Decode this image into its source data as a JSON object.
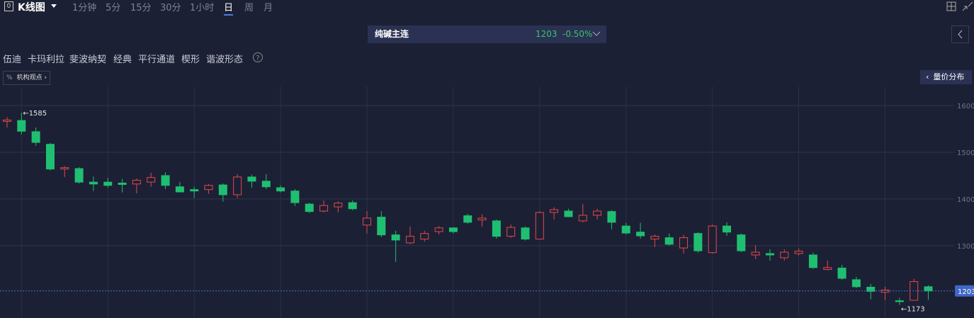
{
  "toolbar": {
    "title": "K线图",
    "periods": [
      "1分钟",
      "5分",
      "15分",
      "30分",
      "1小时",
      "日",
      "周",
      "月"
    ],
    "active_period": 5
  },
  "header": {
    "symbol": "纯碱主连",
    "change": "-0.50%"
  },
  "tools": [
    "伍迪",
    "卡玛利拉",
    "斐波纳契",
    "经典",
    "平行通道",
    "楔形",
    "谐波形态"
  ],
  "buttons": {
    "views": "机构观点",
    "volume_profile": "量价分布"
  },
  "chart_data": {
    "type": "candlestick",
    "open": [
      1566,
      1568,
      1544,
      1517,
      1464,
      1465,
      1436,
      1436,
      1434,
      1432,
      1436,
      1450,
      1426,
      1420,
      1420,
      1430,
      1409,
      1447,
      1438,
      1424,
      1417,
      1389,
      1374,
      1383,
      1392,
      1344,
      1361,
      1323,
      1306,
      1314,
      1330,
      1338,
      1364,
      1355,
      1353,
      1320,
      1338,
      1314,
      1371,
      1374,
      1353,
      1365,
      1373,
      1342,
      1329,
      1314,
      1317,
      1295,
      1326,
      1285,
      1342,
      1323,
      1280,
      1283,
      1274,
      1283,
      1280,
      1249,
      1252,
      1227,
      1211,
      1200,
      1182,
      1183,
      1212
    ],
    "high": [
      1575,
      1585,
      1553,
      1520,
      1470,
      1468,
      1448,
      1445,
      1443,
      1444,
      1456,
      1457,
      1436,
      1426,
      1432,
      1433,
      1453,
      1452,
      1453,
      1429,
      1421,
      1392,
      1397,
      1395,
      1397,
      1374,
      1374,
      1332,
      1341,
      1332,
      1342,
      1339,
      1368,
      1367,
      1356,
      1345,
      1341,
      1374,
      1382,
      1379,
      1389,
      1379,
      1376,
      1349,
      1349,
      1324,
      1326,
      1323,
      1329,
      1345,
      1350,
      1326,
      1301,
      1292,
      1292,
      1294,
      1285,
      1268,
      1259,
      1233,
      1218,
      1212,
      1188,
      1229,
      1215
    ],
    "low": [
      1553,
      1538,
      1514,
      1461,
      1447,
      1433,
      1417,
      1424,
      1414,
      1412,
      1426,
      1421,
      1414,
      1402,
      1411,
      1394,
      1402,
      1424,
      1421,
      1414,
      1385,
      1370,
      1371,
      1371,
      1376,
      1326,
      1318,
      1265,
      1303,
      1309,
      1324,
      1326,
      1347,
      1341,
      1315,
      1317,
      1311,
      1314,
      1356,
      1361,
      1350,
      1356,
      1335,
      1324,
      1315,
      1297,
      1300,
      1283,
      1285,
      1283,
      1321,
      1286,
      1271,
      1268,
      1268,
      1279,
      1250,
      1247,
      1227,
      1209,
      1185,
      1183,
      1173,
      1182,
      1184
    ],
    "close": [
      1569,
      1545,
      1521,
      1464,
      1467,
      1436,
      1432,
      1429,
      1431,
      1440,
      1446,
      1429,
      1415,
      1417,
      1429,
      1409,
      1447,
      1438,
      1426,
      1417,
      1392,
      1373,
      1386,
      1391,
      1379,
      1359,
      1323,
      1312,
      1320,
      1326,
      1338,
      1330,
      1350,
      1359,
      1320,
      1339,
      1314,
      1371,
      1377,
      1362,
      1365,
      1374,
      1350,
      1327,
      1321,
      1320,
      1303,
      1317,
      1289,
      1342,
      1329,
      1289,
      1286,
      1280,
      1286,
      1288,
      1253,
      1253,
      1230,
      1212,
      1202,
      1205,
      1180,
      1223,
      1203
    ],
    "up_color": "#e5464a",
    "down_color": "#1fbf72",
    "last_price": 1203,
    "annotations": [
      {
        "value": 1585,
        "label": "←1585"
      },
      {
        "value": 1173,
        "label": "←1173"
      }
    ],
    "ylim": [
      1145,
      1641
    ],
    "yticks": [
      1600,
      1500,
      1400,
      1300
    ],
    "grid": true
  }
}
